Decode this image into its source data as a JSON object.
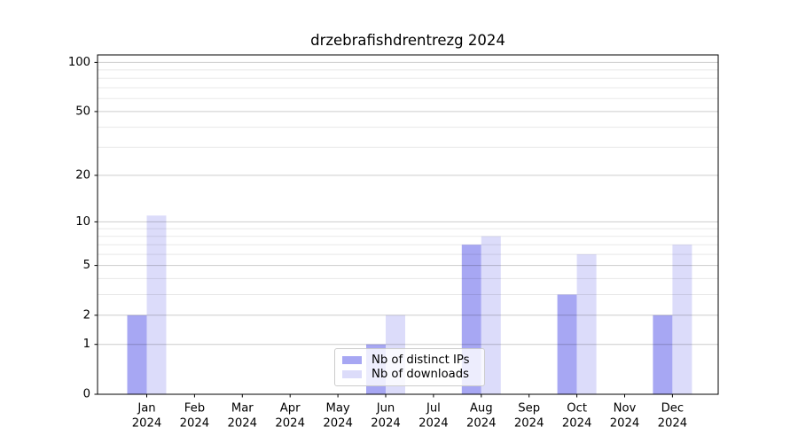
{
  "page": {
    "background": "#ffffff"
  },
  "chart_data": {
    "type": "bar",
    "title": "drzebrafishdrentrezg 2024",
    "categories": [
      "Jan",
      "Feb",
      "Mar",
      "Apr",
      "May",
      "Jun",
      "Jul",
      "Aug",
      "Sep",
      "Oct",
      "Nov",
      "Dec"
    ],
    "year": "2024",
    "series": [
      {
        "key": "distinct-ips",
        "name": "Nb of distinct IPs",
        "color": "#a7a7f3",
        "values": [
          2,
          0,
          0,
          0,
          0,
          1,
          0,
          7,
          0,
          3,
          0,
          2
        ]
      },
      {
        "key": "downloads",
        "name": "Nb of downloads",
        "color": "#dcdcfa",
        "values": [
          11,
          0,
          0,
          0,
          0,
          2,
          0,
          8,
          0,
          6,
          0,
          7
        ]
      }
    ],
    "yscale": "log1p",
    "ylim": [
      0,
      111
    ],
    "y_major_ticks": [
      0,
      1,
      2,
      5,
      10,
      20,
      50,
      100
    ],
    "y_minor_ticks": [
      3,
      4,
      6,
      7,
      8,
      9,
      30,
      40,
      60,
      70,
      80,
      90
    ],
    "xlabel": "",
    "ylabel": "",
    "grid": "horizontal",
    "legend_position": "lower center"
  },
  "colors": {
    "axis": "#000000",
    "grid_major": "rgba(0,0,0,0.20)",
    "grid_minor": "rgba(0,0,0,0.09)",
    "legend_border": "#cccccc",
    "legend_bg": "rgba(255,255,255,0.8)"
  }
}
